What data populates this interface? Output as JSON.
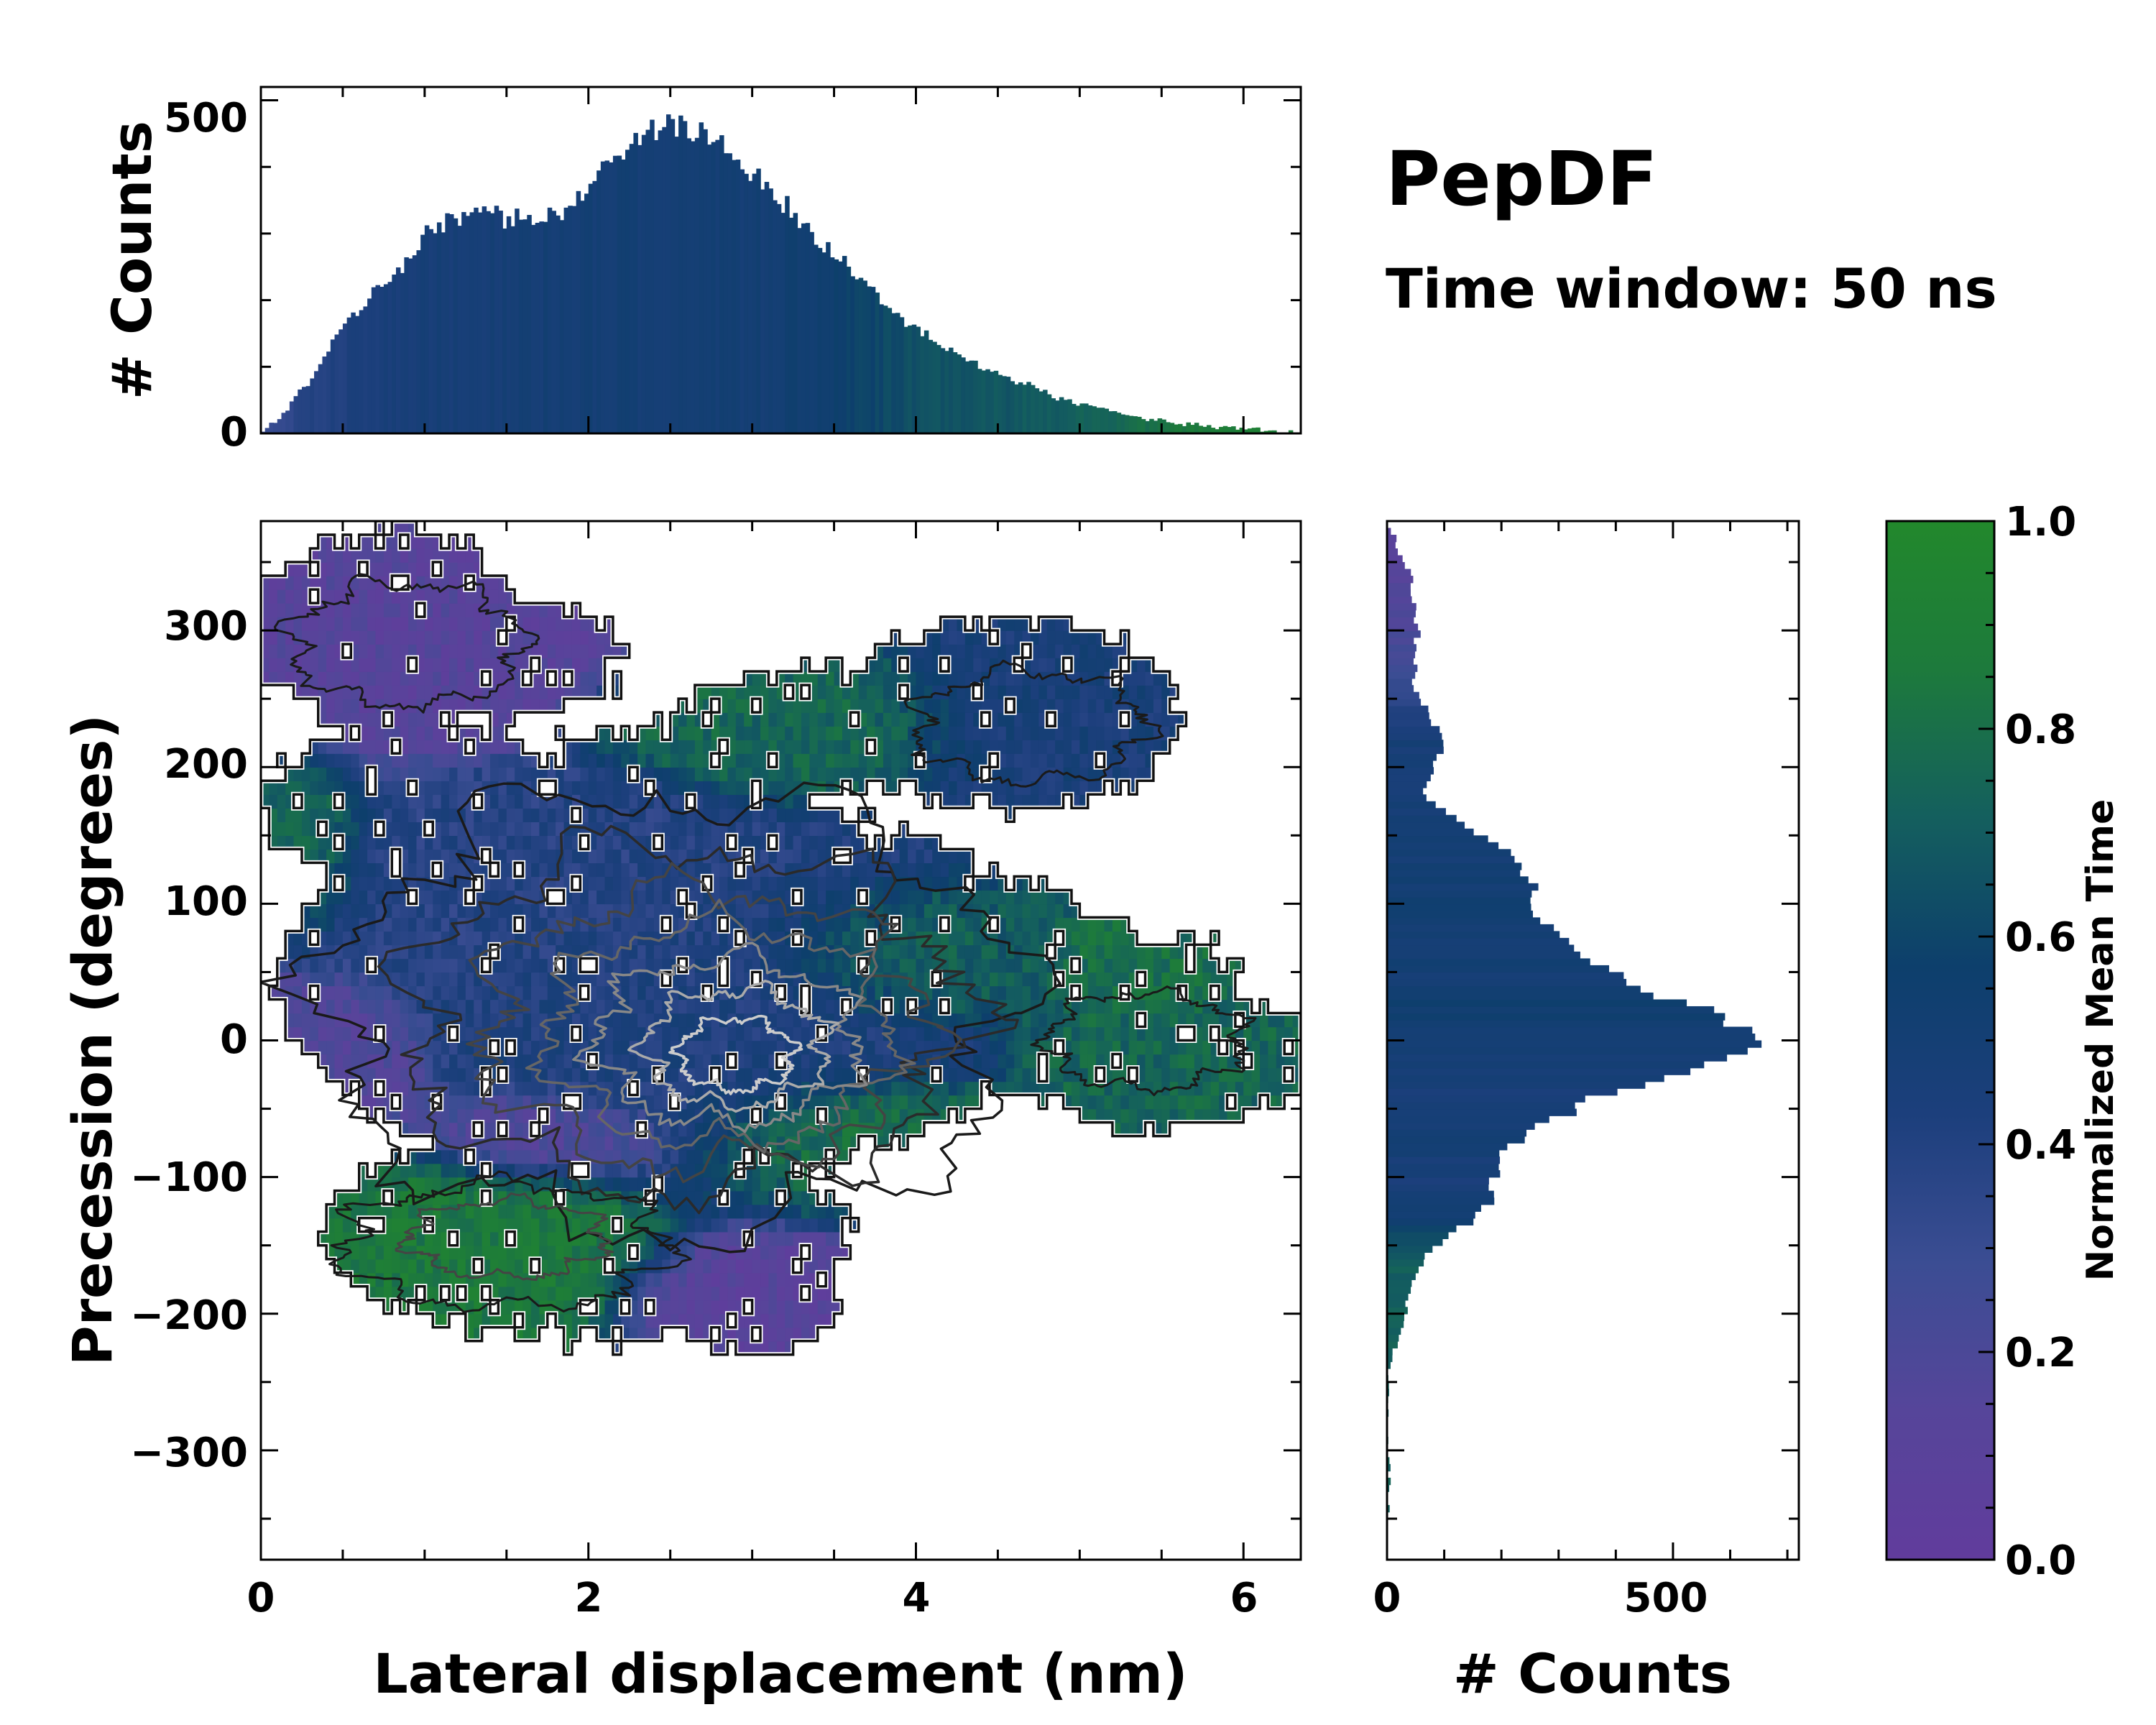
{
  "title": "PepDF",
  "subtitle": "Time window: 50 ns",
  "colors": {
    "cmap_low": "#613c9c",
    "cmap_mid": "#0d3f6c",
    "cmap_high": "#22882c",
    "frame": "#000000"
  },
  "chart_data": [
    {
      "id": "top_histogram",
      "type": "bar",
      "orientation": "vertical",
      "xlim": [
        0,
        6.35
      ],
      "ylim": [
        0,
        520
      ],
      "yticks": [
        "0",
        "500"
      ],
      "ylabel": "# Counts",
      "bin_width": 0.025,
      "profile_x": [
        0.0,
        0.1,
        0.3,
        0.5,
        0.7,
        0.9,
        1.0,
        1.2,
        1.4,
        1.6,
        1.8,
        2.0,
        2.1,
        2.3,
        2.5,
        2.7,
        2.9,
        3.1,
        3.3,
        3.5,
        3.7,
        3.9,
        4.1,
        4.3,
        4.6,
        4.9,
        5.2,
        5.5,
        5.8,
        6.1,
        6.35
      ],
      "profile_counts": [
        0,
        20,
        80,
        160,
        210,
        260,
        300,
        320,
        330,
        320,
        330,
        370,
        400,
        445,
        465,
        450,
        420,
        370,
        320,
        270,
        220,
        175,
        140,
        110,
        80,
        50,
        30,
        18,
        10,
        5,
        0
      ],
      "color_profile": [
        0.28,
        0.32,
        0.38,
        0.42,
        0.44,
        0.46,
        0.47,
        0.48,
        0.48,
        0.49,
        0.5,
        0.5,
        0.5,
        0.5,
        0.5,
        0.5,
        0.5,
        0.51,
        0.53,
        0.56,
        0.6,
        0.63,
        0.65,
        0.67,
        0.68,
        0.7,
        0.75,
        0.82,
        0.88,
        0.9,
        0.9
      ]
    },
    {
      "id": "main_2d_histogram",
      "type": "heatmap",
      "xlim": [
        0,
        6.35
      ],
      "ylim": [
        -380,
        380
      ],
      "xticks": [
        "0",
        "2",
        "4",
        "6"
      ],
      "yticks": [
        "300",
        "200",
        "100",
        "0",
        "−100",
        "−200",
        "−300"
      ],
      "xlabel": "Lateral displacement (nm)",
      "ylabel": "Precession (degrees)",
      "cell_size": [
        0.05,
        10
      ],
      "color_meaning": "normalized mean time",
      "contours": "density contours, dark to light gray",
      "regions": [
        {
          "center": [
            0.9,
            300
          ],
          "radius": [
            0.9,
            70
          ],
          "value": 0.12
        },
        {
          "center": [
            4.8,
            230
          ],
          "radius": [
            0.8,
            60
          ],
          "value": 0.46
        },
        {
          "center": [
            3.3,
            230
          ],
          "radius": [
            0.9,
            40
          ],
          "value": 0.75
        },
        {
          "center": [
            0.3,
            140
          ],
          "radius": [
            0.3,
            50
          ],
          "value": 0.75
        },
        {
          "center": [
            1.6,
            110
          ],
          "radius": [
            1.2,
            70
          ],
          "value": 0.38
        },
        {
          "center": [
            2.6,
            20
          ],
          "radius": [
            1.3,
            110
          ],
          "value": 0.42
        },
        {
          "center": [
            0.4,
            -20
          ],
          "radius": [
            0.5,
            50
          ],
          "value": 0.15
        },
        {
          "center": [
            3.9,
            60
          ],
          "radius": [
            0.8,
            40
          ],
          "value": 0.72
        },
        {
          "center": [
            5.6,
            -20
          ],
          "radius": [
            0.7,
            50
          ],
          "value": 0.75
        },
        {
          "center": [
            5.4,
            50
          ],
          "radius": [
            0.4,
            30
          ],
          "value": 0.8
        },
        {
          "center": [
            3.5,
            -70
          ],
          "radius": [
            0.8,
            40
          ],
          "value": 0.82
        },
        {
          "center": [
            1.4,
            -150
          ],
          "radius": [
            0.9,
            60
          ],
          "value": 0.86
        },
        {
          "center": [
            2.9,
            -190
          ],
          "radius": [
            0.6,
            40
          ],
          "value": 0.1
        },
        {
          "center": [
            1.8,
            -70
          ],
          "radius": [
            0.7,
            30
          ],
          "value": 0.12
        }
      ],
      "blobs": [
        {
          "center": [
            0.8,
            300
          ],
          "radius": [
            0.85,
            70
          ]
        },
        {
          "center": [
            1.6,
            280
          ],
          "radius": [
            0.6,
            45
          ]
        },
        {
          "center": [
            4.6,
            240
          ],
          "radius": [
            1.0,
            70
          ]
        },
        {
          "center": [
            3.6,
            230
          ],
          "radius": [
            1.1,
            45
          ]
        },
        {
          "center": [
            2.5,
            190
          ],
          "radius": [
            0.9,
            40
          ]
        },
        {
          "center": [
            1.0,
            170
          ],
          "radius": [
            1.0,
            60
          ]
        },
        {
          "center": [
            2.5,
            40
          ],
          "radius": [
            2.4,
            140
          ]
        },
        {
          "center": [
            4.3,
            40
          ],
          "radius": [
            1.2,
            80
          ]
        },
        {
          "center": [
            5.5,
            -10
          ],
          "radius": [
            0.9,
            55
          ]
        },
        {
          "center": [
            5.6,
            45
          ],
          "radius": [
            0.35,
            30
          ]
        },
        {
          "center": [
            2.0,
            -140
          ],
          "radius": [
            1.6,
            80
          ]
        },
        {
          "center": [
            3.0,
            -195
          ],
          "radius": [
            0.55,
            35
          ]
        }
      ]
    },
    {
      "id": "right_histogram",
      "type": "bar",
      "orientation": "horizontal",
      "ylim": [
        -380,
        380
      ],
      "xlim": [
        0,
        720
      ],
      "xticks": [
        "0",
        "500"
      ],
      "xlabel": "# Counts",
      "bin_width": 5,
      "profile_y": [
        380,
        340,
        300,
        260,
        220,
        180,
        140,
        120,
        100,
        80,
        60,
        40,
        20,
        0,
        -20,
        -40,
        -60,
        -80,
        -100,
        -120,
        -160,
        -200,
        -240,
        -380
      ],
      "profile_counts": [
        0,
        40,
        55,
        45,
        100,
        60,
        200,
        250,
        250,
        290,
        330,
        440,
        560,
        650,
        520,
        380,
        280,
        200,
        190,
        180,
        60,
        30,
        5,
        0
      ],
      "color_profile": [
        0.1,
        0.14,
        0.2,
        0.32,
        0.48,
        0.48,
        0.5,
        0.5,
        0.52,
        0.52,
        0.5,
        0.5,
        0.55,
        0.5,
        0.48,
        0.46,
        0.5,
        0.48,
        0.46,
        0.48,
        0.7,
        0.72,
        0.72,
        0.72
      ]
    },
    {
      "id": "colorbar",
      "type": "colorbar",
      "range": [
        0.0,
        1.0
      ],
      "ticks": [
        "0.0",
        "0.2",
        "0.4",
        "0.6",
        "0.8",
        "1.0"
      ],
      "label": "Normalized Mean Time",
      "stops": [
        "#613c9c",
        "#56459a",
        "#3b4d93",
        "#1c3f7c",
        "#0d3f6c",
        "#145f5e",
        "#1d7a3c",
        "#22882c"
      ]
    }
  ]
}
